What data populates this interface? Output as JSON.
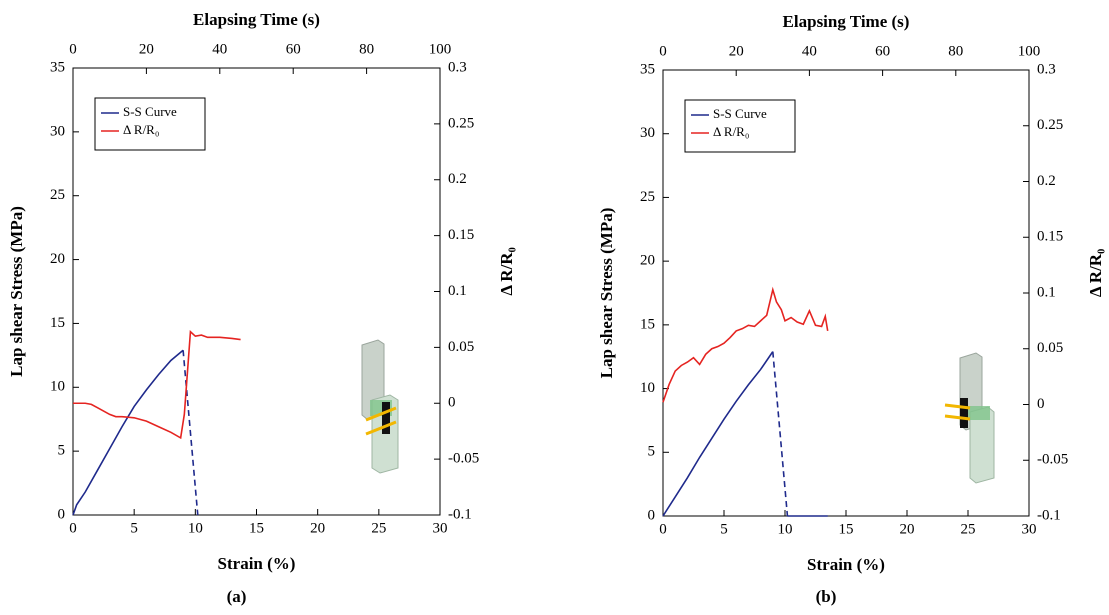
{
  "chart_data": [
    {
      "type": "line",
      "label": "(a)",
      "x_label": "Strain (%)",
      "y_label": "Lap shear Stress (MPa)",
      "y2_label": "Δ R/R₀",
      "x2_label": "Elapsing Time (s)",
      "xlim": [
        0,
        30
      ],
      "xticks": [
        0,
        5,
        10,
        15,
        20,
        25,
        30
      ],
      "x2lim": [
        0,
        100
      ],
      "x2ticks": [
        0,
        20,
        40,
        60,
        80,
        100
      ],
      "ylim": [
        0,
        35
      ],
      "yticks": [
        0,
        5,
        10,
        15,
        20,
        25,
        30,
        35
      ],
      "y2lim": [
        -0.1,
        0.3
      ],
      "y2ticks": [
        -0.1,
        -0.05,
        0,
        0.05,
        0.1,
        0.15,
        0.2,
        0.25,
        0.3
      ],
      "legend": "upper left",
      "series": [
        {
          "name": "S-S Curve",
          "color": "#1f2a8c",
          "dashed_segments": [
            10
          ],
          "x": [
            0,
            0.3,
            1,
            2,
            3,
            4,
            5,
            6,
            7,
            8,
            9,
            10.2
          ],
          "values": [
            0,
            0.8,
            1.8,
            3.5,
            5.2,
            6.9,
            8.5,
            9.8,
            11,
            12.1,
            12.9,
            0
          ]
        },
        {
          "name": "Δ R/R₀",
          "color": "#e52421",
          "axis": "y2",
          "x": [
            0,
            1,
            1.5,
            2,
            3,
            3.5,
            4,
            5,
            6,
            7,
            8,
            8.8,
            9.1,
            9.6,
            10,
            10.5,
            11,
            12,
            13,
            13.7
          ],
          "values": [
            0,
            0,
            -0.001,
            -0.004,
            -0.01,
            -0.012,
            -0.012,
            -0.013,
            -0.016,
            -0.021,
            -0.026,
            -0.031,
            -0.01,
            0.064,
            0.06,
            0.061,
            0.059,
            0.059,
            0.058,
            0.057
          ]
        }
      ]
    },
    {
      "type": "line",
      "label": "(b)",
      "x_label": "Strain (%)",
      "y_label": "Lap shear Stress (MPa)",
      "y2_label": "Δ R/R₀",
      "x2_label": "Elapsing Time (s)",
      "xlim": [
        0,
        30
      ],
      "xticks": [
        0,
        5,
        10,
        15,
        20,
        25,
        30
      ],
      "x2lim": [
        0,
        100
      ],
      "x2ticks": [
        0,
        20,
        40,
        60,
        80,
        100
      ],
      "ylim": [
        0,
        35
      ],
      "yticks": [
        0,
        5,
        10,
        15,
        20,
        25,
        30,
        35
      ],
      "y2lim": [
        -0.1,
        0.3
      ],
      "y2ticks": [
        -0.1,
        -0.05,
        0,
        0.05,
        0.1,
        0.15,
        0.2,
        0.25,
        0.3
      ],
      "legend": "upper left",
      "series": [
        {
          "name": "S-S Curve",
          "color": "#1f2a8c",
          "dashed_segments": [
            9
          ],
          "x": [
            0,
            1,
            2,
            3,
            4,
            5,
            6,
            7,
            8,
            9,
            10.2,
            13.5
          ],
          "values": [
            0,
            1.5,
            3,
            4.6,
            6.1,
            7.6,
            9,
            10.3,
            11.5,
            12.9,
            0,
            0
          ]
        },
        {
          "name": "Δ R/R₀",
          "color": "#e52421",
          "axis": "y2",
          "x": [
            0,
            0.5,
            1,
            1.5,
            2,
            2.5,
            3,
            3.5,
            4,
            4.5,
            5,
            5.5,
            6,
            6.5,
            7,
            7.5,
            8,
            8.5,
            9,
            9.3,
            9.7,
            10,
            10.5,
            11,
            11.5,
            12,
            12.5,
            13,
            13.3,
            13.5
          ],
          "values": [
            0.002,
            0.018,
            0.03,
            0.035,
            0.038,
            0.042,
            0.036,
            0.045,
            0.05,
            0.052,
            0.055,
            0.06,
            0.066,
            0.068,
            0.071,
            0.07,
            0.075,
            0.08,
            0.103,
            0.092,
            0.085,
            0.075,
            0.078,
            0.074,
            0.072,
            0.084,
            0.071,
            0.07,
            0.079,
            0.066
          ]
        }
      ]
    }
  ]
}
